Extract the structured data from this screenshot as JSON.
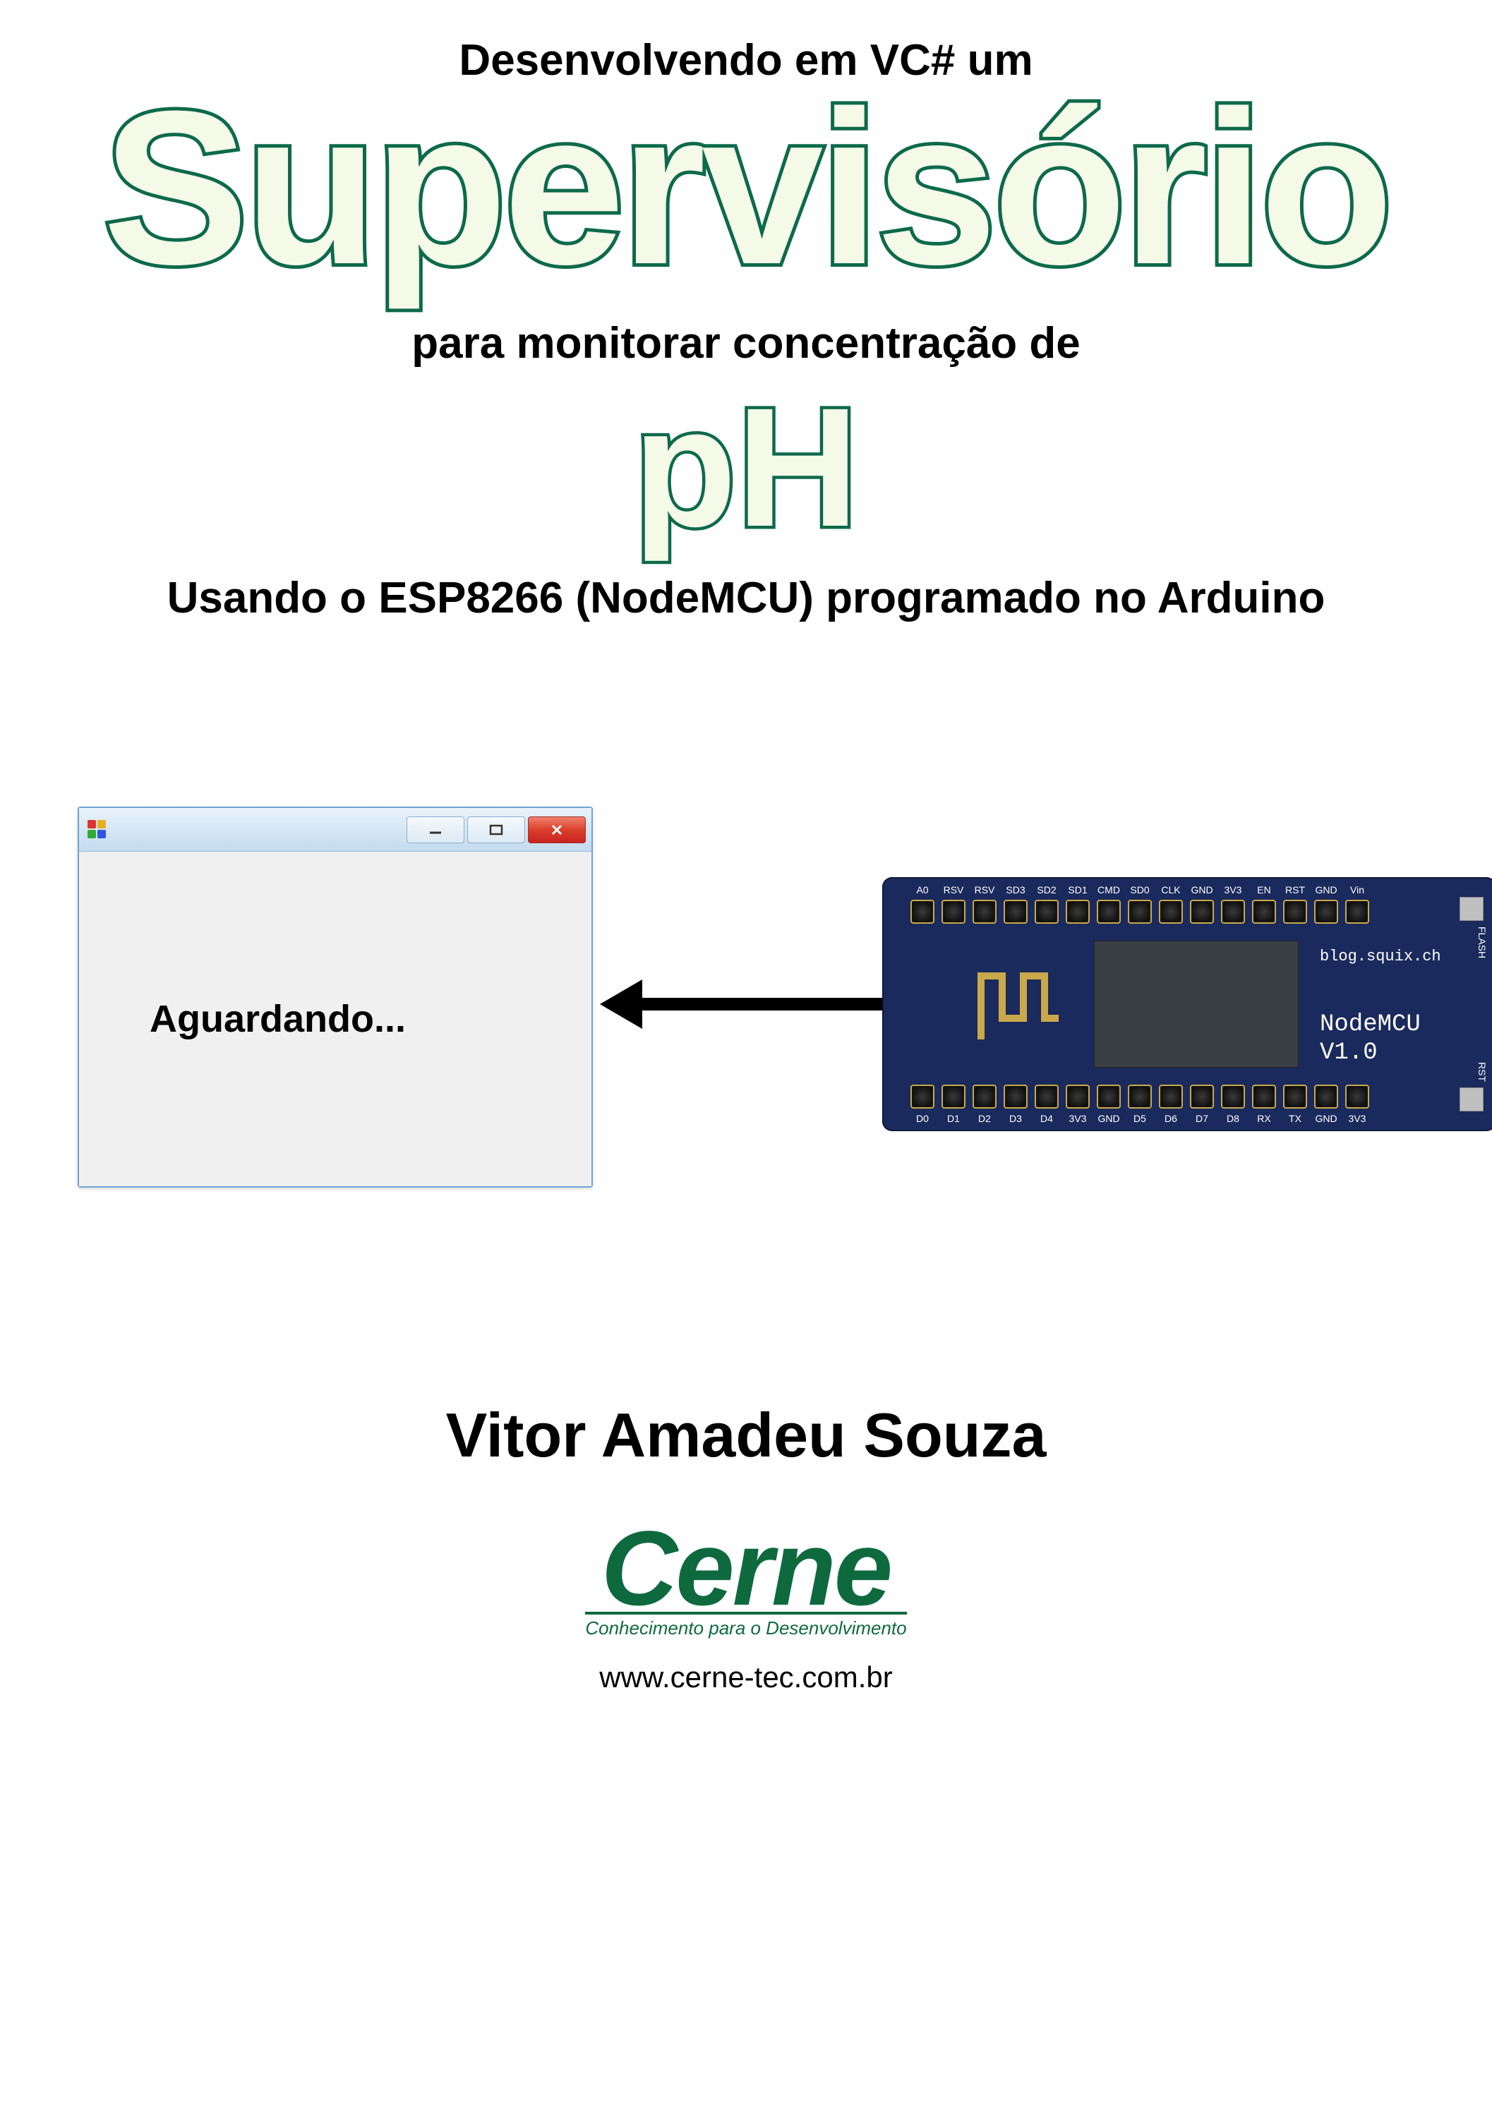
{
  "header": {
    "line1": "Desenvolvendo em VC# um",
    "title_big": "Supervisório",
    "line2": "para monitorar concentração de",
    "title_ph": "pH",
    "line3": "Usando o ESP8266 (NodeMCU) programado no Arduino"
  },
  "app_window": {
    "waiting_text": "Aguardando...",
    "background_color": "#f0f0f0",
    "titlebar_gradient_top": "#eaf3fb",
    "titlebar_gradient_bottom": "#c4dbef",
    "close_button_color": "#d9402a"
  },
  "board": {
    "bg_color": "#1a2a5c",
    "url_text": "blog.squix.ch",
    "name_line1": "NodeMCU",
    "name_line2": "V1.0",
    "flash_label": "FLASH",
    "rst_label": "RST",
    "pin_labels_top": [
      "A0",
      "RSV",
      "RSV",
      "SD3",
      "SD2",
      "SD1",
      "CMD",
      "SD0",
      "CLK",
      "GND",
      "3V3",
      "EN",
      "RST",
      "GND",
      "Vin"
    ],
    "pin_labels_bot": [
      "D0",
      "D1",
      "D2",
      "D3",
      "D4",
      "3V3",
      "GND",
      "D5",
      "D6",
      "D7",
      "D8",
      "RX",
      "TX",
      "GND",
      "3V3"
    ]
  },
  "author": "Vitor Amadeu Souza",
  "logo": {
    "word": "Cerne",
    "tagline": "Conhecimento para o Desenvolvimento",
    "url": "www.cerne-tec.com.br",
    "color": "#0e6a3e"
  },
  "colors": {
    "title_fill": "#f4f9e8",
    "title_stroke": "#0d6a4a",
    "text_black": "#000000"
  }
}
